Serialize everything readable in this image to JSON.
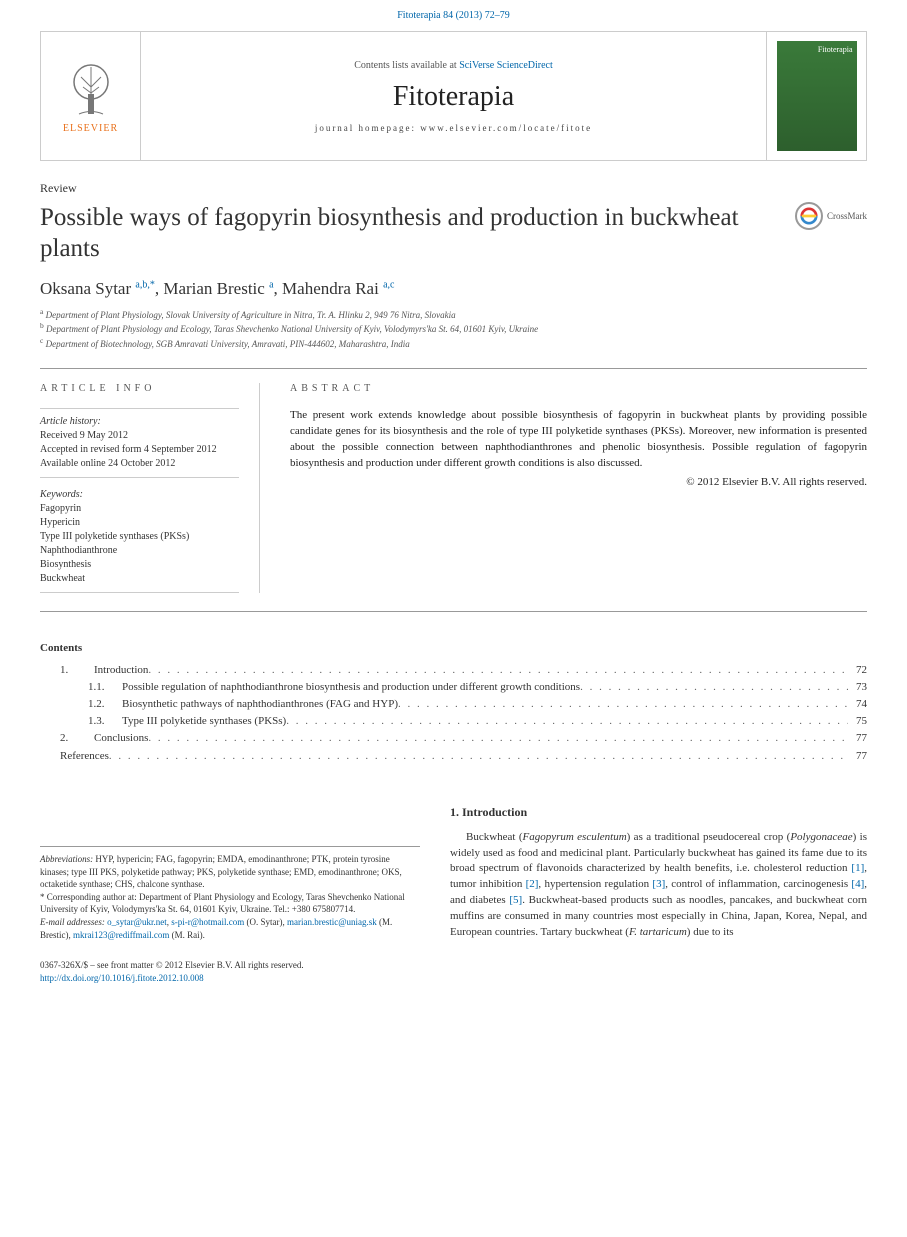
{
  "header": {
    "citation": "Fitoterapia 84 (2013) 72–79",
    "contents_prefix": "Contents lists available at",
    "sd_name": "SciVerse ScienceDirect",
    "journal_name": "Fitoterapia",
    "homepage_label": "journal homepage: www.elsevier.com/locate/fitote",
    "elsevier_label": "ELSEVIER",
    "cover_label": "Fitoterapia"
  },
  "article": {
    "type": "Review",
    "title": "Possible ways of fagopyrin biosynthesis and production in buckwheat plants",
    "crossmark_label": "CrossMark",
    "authors_html": "Oksana Sytar <sup>a,b,*</sup>, Marian Brestic <sup>a</sup>, Mahendra Rai <sup>a,c</sup>",
    "affiliations": [
      {
        "sup": "a",
        "text": "Department of Plant Physiology, Slovak University of Agriculture in Nitra, Tr. A. Hlinku 2, 949 76 Nitra, Slovakia"
      },
      {
        "sup": "b",
        "text": "Department of Plant Physiology and Ecology, Taras Shevchenko National University of Kyiv, Volodymyrs'ka St. 64, 01601 Kyiv, Ukraine"
      },
      {
        "sup": "c",
        "text": "Department of Biotechnology, SGB Amravati University, Amravati, PIN-444602, Maharashtra, India"
      }
    ]
  },
  "info": {
    "heading": "article info",
    "history_label": "Article history:",
    "history_lines": [
      "Received 9 May 2012",
      "Accepted in revised form 4 September 2012",
      "Available online 24 October 2012"
    ],
    "keywords_label": "Keywords:",
    "keywords": [
      "Fagopyrin",
      "Hypericin",
      "Type III polyketide synthases (PKSs)",
      "Naphthodianthrone",
      "Biosynthesis",
      "Buckwheat"
    ]
  },
  "abstract": {
    "heading": "abstract",
    "text": "The present work extends knowledge about possible biosynthesis of fagopyrin in buckwheat plants by providing possible candidate genes for its biosynthesis and the role of type III polyketide synthases (PKSs). Moreover, new information is presented about the possible connection between naphthodianthrones and phenolic biosynthesis. Possible regulation of fagopyrin biosynthesis and production under different growth conditions is also discussed.",
    "copyright": "© 2012 Elsevier B.V. All rights reserved."
  },
  "toc": {
    "heading": "Contents",
    "entries": [
      {
        "level": 1,
        "num": "1.",
        "title": "Introduction",
        "page": "72"
      },
      {
        "level": 2,
        "num": "1.1.",
        "title": "Possible regulation of naphthodianthrone biosynthesis and production under different growth conditions",
        "page": "73"
      },
      {
        "level": 2,
        "num": "1.2.",
        "title": "Biosynthetic pathways of naphthodianthrones (FAG and HYP)",
        "page": "74"
      },
      {
        "level": 2,
        "num": "1.3.",
        "title": "Type III polyketide synthases (PKSs)",
        "page": "75"
      },
      {
        "level": 1,
        "num": "2.",
        "title": "Conclusions",
        "page": "77"
      },
      {
        "level": 0,
        "num": "",
        "title": "References",
        "page": "77"
      }
    ]
  },
  "footnotes": {
    "abbrev_label": "Abbreviations:",
    "abbrev_text": " HYP, hypericin; FAG, fagopyrin; EMDA, emodinanthrone; PTK, protein tyrosine kinases; type III PKS, polyketide pathway; PKS, polyketide synthase; EMD, emodinanthrone; OKS, octaketide synthase; CHS, chalcone synthase.",
    "corr_marker": "*",
    "corr_text": " Corresponding author at: Department of Plant Physiology and Ecology, Taras Shevchenko National University of Kyiv, Volodymyrs'ka St. 64, 01601 Kyiv, Ukraine. Tel.: +380 675807714.",
    "email_label": "E-mail addresses:",
    "emails": [
      {
        "addr": "o_sytar@ukr.net",
        "who": ""
      },
      {
        "addr": "s-pi-r@hotmail.com",
        "who": " (O. Sytar),"
      },
      {
        "addr": "marian.brestic@uniag.sk",
        "who": " (M. Brestic),"
      },
      {
        "addr": "mkrai123@rediffmail.com",
        "who": " (M. Rai)."
      }
    ]
  },
  "intro": {
    "heading": "1. Introduction",
    "paragraph_html": "Buckwheat (<span class=\"species\">Fagopyrum esculentum</span>) as a traditional pseudocereal crop (<span class=\"species\">Polygonaceae</span>) is widely used as food and medicinal plant. Particularly buckwheat has gained its fame due to its broad spectrum of flavonoids characterized by health benefits, i.e. cholesterol reduction <span class=\"cite\">[1]</span>, tumor inhibition <span class=\"cite\">[2]</span>, hypertension regulation <span class=\"cite\">[3]</span>, control of inflammation, carcinogenesis <span class=\"cite\">[4]</span>, and diabetes <span class=\"cite\">[5]</span>. Buckwheat-based products such as noodles, pancakes, and buckwheat corn muffins are consumed in many countries most especially in China, Japan, Korea, Nepal, and European countries. Tartary buckwheat (<span class=\"species\">F. tartaricum</span>) due to its"
  },
  "footer": {
    "issn_line": "0367-326X/$ – see front matter © 2012 Elsevier B.V. All rights reserved.",
    "doi": "http://dx.doi.org/10.1016/j.fitote.2012.10.008"
  },
  "colors": {
    "link": "#0066aa",
    "elsevier_orange": "#e9711c",
    "text": "#333333",
    "muted": "#555555",
    "rule": "#999999"
  }
}
